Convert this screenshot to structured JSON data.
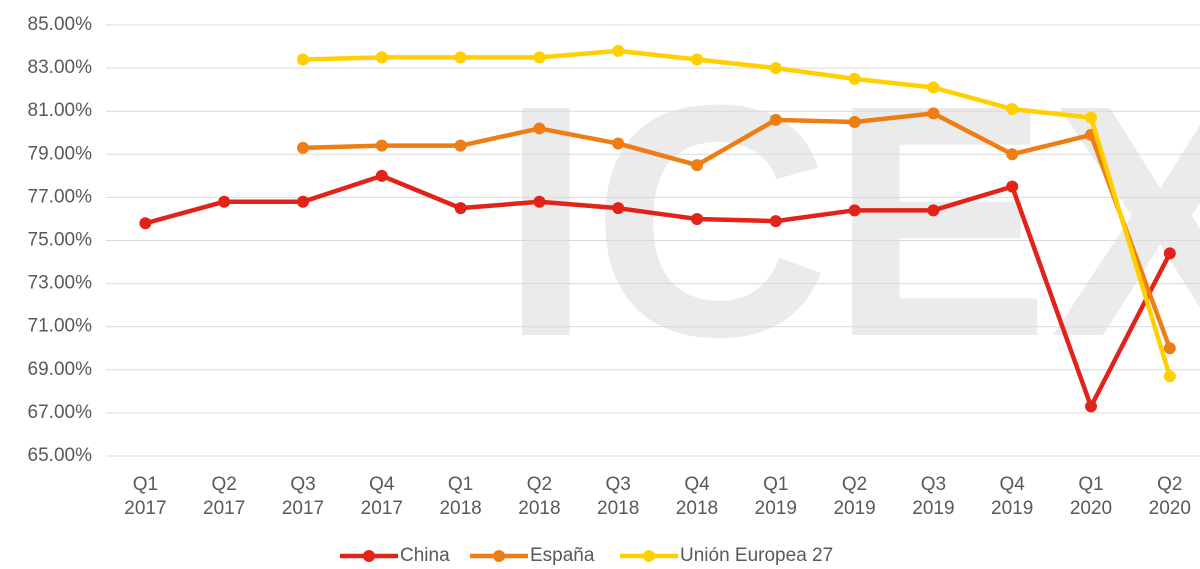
{
  "chart_data": {
    "type": "line",
    "watermark": "ICEX",
    "categories": [
      [
        "Q1",
        "2017"
      ],
      [
        "Q2",
        "2017"
      ],
      [
        "Q3",
        "2017"
      ],
      [
        "Q4",
        "2017"
      ],
      [
        "Q1",
        "2018"
      ],
      [
        "Q2",
        "2018"
      ],
      [
        "Q3",
        "2018"
      ],
      [
        "Q4",
        "2018"
      ],
      [
        "Q1",
        "2019"
      ],
      [
        "Q2",
        "2019"
      ],
      [
        "Q3",
        "2019"
      ],
      [
        "Q4",
        "2019"
      ],
      [
        "Q1",
        "2020"
      ],
      [
        "Q2",
        "2020"
      ]
    ],
    "series": [
      {
        "name": "China",
        "color": "#e2231a",
        "values": [
          75.8,
          76.8,
          76.8,
          78.0,
          76.5,
          76.8,
          76.5,
          76.0,
          75.9,
          76.4,
          76.4,
          77.5,
          67.3,
          74.4
        ]
      },
      {
        "name": "España",
        "color": "#ee7d14",
        "values": [
          null,
          null,
          79.3,
          79.4,
          79.4,
          80.2,
          79.5,
          78.5,
          80.6,
          80.5,
          80.9,
          79.0,
          79.9,
          70.0
        ]
      },
      {
        "name": "Unión Europea 27",
        "color": "#ffcf00",
        "values": [
          null,
          null,
          83.4,
          83.5,
          83.5,
          83.5,
          83.8,
          83.4,
          83.0,
          82.5,
          82.1,
          81.1,
          80.7,
          68.7
        ]
      }
    ],
    "ylim": [
      65,
      85
    ],
    "yticks": [
      {
        "value": 65,
        "label": "65.00%"
      },
      {
        "value": 67,
        "label": "67.00%"
      },
      {
        "value": 69,
        "label": "69.00%"
      },
      {
        "value": 71,
        "label": "71.00%"
      },
      {
        "value": 73,
        "label": "73.00%"
      },
      {
        "value": 75,
        "label": "75.00%"
      },
      {
        "value": 77,
        "label": "77.00%"
      },
      {
        "value": 79,
        "label": "79.00%"
      },
      {
        "value": 81,
        "label": "81.00%"
      },
      {
        "value": 83,
        "label": "83.00%"
      },
      {
        "value": 85,
        "label": "85.00%"
      }
    ],
    "grid": true,
    "legend": "bottom"
  }
}
